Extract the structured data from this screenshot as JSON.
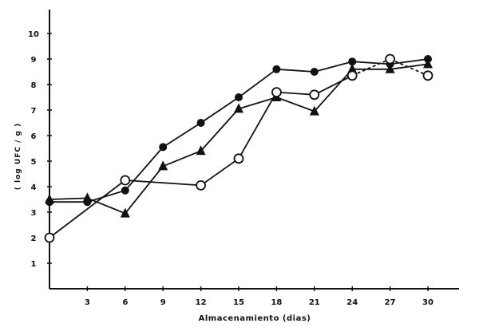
{
  "chart_data": {
    "type": "line",
    "title": "",
    "xlabel": "Almacenamiento (dias)",
    "ylabel": "( log UFC / g )",
    "xlim": [
      0,
      33
    ],
    "ylim": [
      0,
      10.5
    ],
    "xticks": [
      3,
      6,
      9,
      12,
      15,
      18,
      21,
      24,
      27,
      30
    ],
    "yticks": [
      1,
      2,
      3,
      4,
      5,
      6,
      7,
      8,
      9,
      10
    ],
    "grid": false,
    "series": [
      {
        "marker": "filled-circle",
        "x": [
          0,
          3,
          6,
          9,
          12,
          15,
          18,
          21,
          24,
          27,
          30
        ],
        "y": [
          3.4,
          3.4,
          3.85,
          5.55,
          6.5,
          7.5,
          8.6,
          8.5,
          8.9,
          8.8,
          9.0
        ],
        "dashed_from_index": null
      },
      {
        "marker": "filled-triangle",
        "x": [
          0,
          3,
          6,
          9,
          12,
          15,
          18,
          21,
          24,
          27,
          30
        ],
        "y": [
          3.5,
          3.55,
          2.95,
          4.8,
          5.4,
          7.05,
          7.5,
          6.95,
          8.6,
          8.6,
          8.8
        ],
        "dashed_from_index": null
      },
      {
        "marker": "open-circle",
        "x": [
          0,
          6,
          12,
          15,
          18,
          21,
          24,
          27,
          30
        ],
        "y": [
          2.0,
          4.25,
          4.05,
          5.1,
          7.7,
          7.6,
          8.35,
          9.0,
          8.35
        ],
        "dashed_from_index": 6
      }
    ],
    "colors": {
      "ink": "#111111",
      "background": "#ffffff"
    }
  }
}
